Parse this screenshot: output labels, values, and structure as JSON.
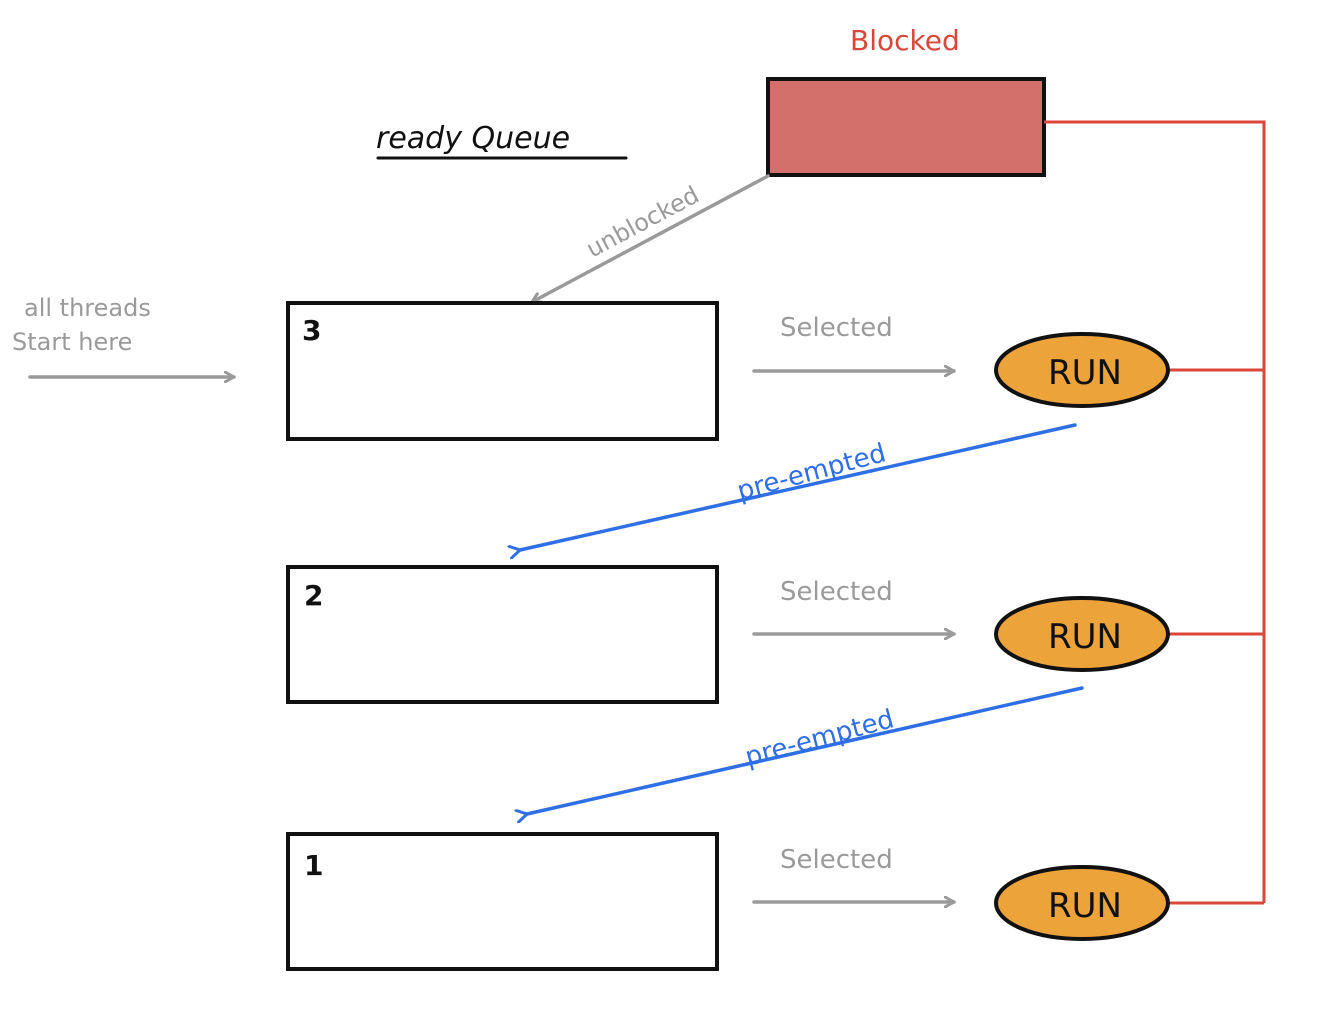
{
  "title": "ready Queue",
  "blocked": {
    "label": "Blocked",
    "fill": "#d4706c",
    "text_color": "#d9473a"
  },
  "entry": {
    "line1": "all threads",
    "line2": "Start here"
  },
  "queues": [
    {
      "level": "3",
      "selected_label": "Selected",
      "run_label": "RUN"
    },
    {
      "level": "2",
      "selected_label": "Selected",
      "run_label": "RUN"
    },
    {
      "level": "1",
      "selected_label": "Selected",
      "run_label": "RUN"
    }
  ],
  "transitions": {
    "unblocked": "unblocked",
    "preempted_1": "pre-empted",
    "preempted_2": "pre-empted"
  },
  "colors": {
    "gray_arrow": "#9a9a9a",
    "blue_arrow": "#2f6fe6",
    "red_line": "#d9473a",
    "run_fill": "#eca33a"
  }
}
